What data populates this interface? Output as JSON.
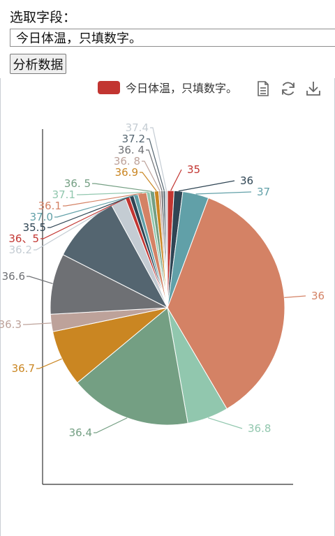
{
  "field_label": "选取字段：",
  "field_input": {
    "value": "今日体温，只填数字。"
  },
  "analyze_button": "分析数据",
  "toolbox": {
    "icons": [
      "data-view-icon",
      "restore-icon",
      "save-image-icon"
    ]
  },
  "chart_data": {
    "type": "pie",
    "legend": [
      "今日体温，只填数字。"
    ],
    "legend_position": "top-center",
    "legend_color": "#c23531",
    "slices": [
      {
        "label": "35",
        "value": 1.5,
        "color": "#c23531"
      },
      {
        "label": "36",
        "value": 2,
        "color": "#2f4554"
      },
      {
        "label": "37",
        "value": 6,
        "color": "#61a0a8"
      },
      {
        "label": "36",
        "value": 60,
        "color": "#d48265"
      },
      {
        "label": "36.8",
        "value": 9.5,
        "color": "#91c7ae"
      },
      {
        "label": "36.4",
        "value": 28,
        "color": "#749f83"
      },
      {
        "label": "36.7",
        "value": 13,
        "color": "#ca8622"
      },
      {
        "label": "36.3",
        "value": 4,
        "color": "#bda29a"
      },
      {
        "label": "36.6",
        "value": 14,
        "color": "#6e7074"
      },
      {
        "label": "",
        "value": 16,
        "color": "#546570"
      },
      {
        "label": "36.2",
        "value": 3.5,
        "color": "#c4ccd3"
      },
      {
        "label": "36、5",
        "value": 1,
        "color": "#c23531"
      },
      {
        "label": "35.5",
        "value": 1,
        "color": "#2f4554"
      },
      {
        "label": "37.0",
        "value": 1,
        "color": "#61a0a8"
      },
      {
        "label": "36.1",
        "value": 2,
        "color": "#d48265"
      },
      {
        "label": "37.1",
        "value": 0.8,
        "color": "#91c7ae"
      },
      {
        "label": "36. 5",
        "value": 1,
        "color": "#749f83"
      },
      {
        "label": "36.9",
        "value": 1,
        "color": "#ca8622"
      },
      {
        "label": "36. 8",
        "value": 0.5,
        "color": "#bda29a"
      },
      {
        "label": "36. 4",
        "value": 0.5,
        "color": "#6e7074"
      },
      {
        "label": "37.2",
        "value": 0.5,
        "color": "#546570"
      },
      {
        "label": "37.4",
        "value": 0.5,
        "color": "#c4ccd3"
      }
    ]
  }
}
